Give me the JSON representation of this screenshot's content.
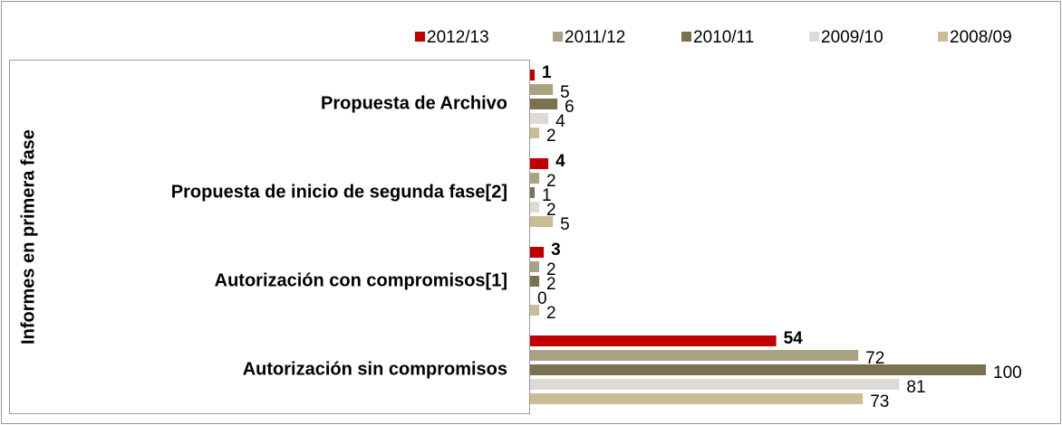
{
  "chart_data": {
    "type": "barh",
    "y_label": "Informes en primera fase",
    "categories": [
      "Propuesta de Archivo",
      "Propuesta de inicio de segunda fase[2]",
      "Autorización con compromisos[1]",
      "Autorización sin compromisos"
    ],
    "series": [
      {
        "name": "2012/13",
        "color": "#c00000",
        "values": [
          1,
          4,
          3,
          54
        ]
      },
      {
        "name": "2011/12",
        "color": "#aba283",
        "values": [
          5,
          2,
          2,
          72
        ]
      },
      {
        "name": "2010/11",
        "color": "#7a7150",
        "values": [
          6,
          1,
          2,
          100
        ]
      },
      {
        "name": "2009/10",
        "color": "#dedbd6",
        "values": [
          4,
          2,
          0,
          81
        ]
      },
      {
        "name": "2008/09",
        "color": "#cabd95",
        "values": [
          2,
          5,
          2,
          73
        ]
      }
    ],
    "xlim": [
      0,
      100
    ],
    "legend": "top-right"
  }
}
